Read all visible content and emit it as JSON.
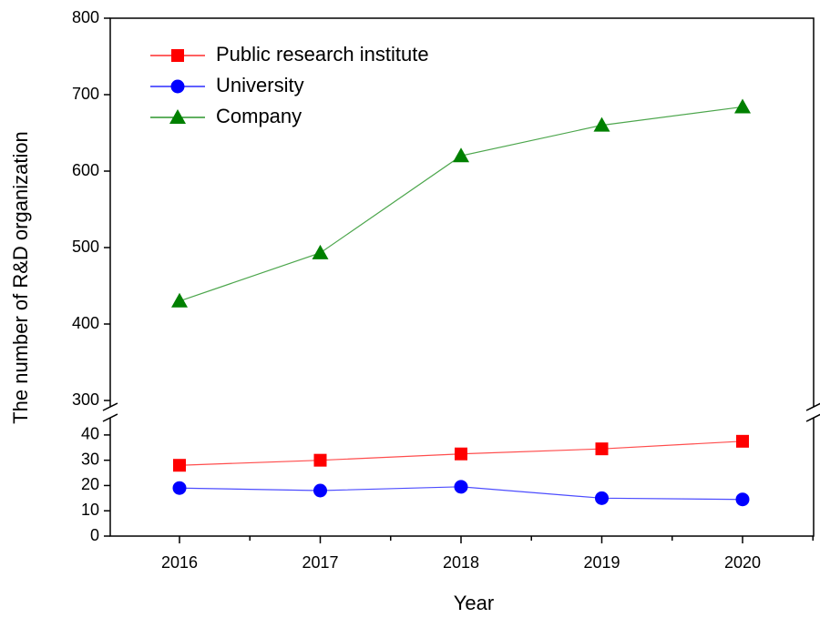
{
  "chart_data": {
    "type": "line",
    "x_label": "Year",
    "y_label": "The number of R&D organization",
    "categories": [
      "2016",
      "2017",
      "2018",
      "2019",
      "2020"
    ],
    "series": [
      {
        "name": "Public research institute",
        "color": "#ff0000",
        "marker": "square",
        "values": [
          28,
          30,
          32.5,
          34.5,
          37.5
        ]
      },
      {
        "name": "University",
        "color": "#0000ff",
        "marker": "circle",
        "values": [
          19,
          18,
          19.5,
          15,
          14.5
        ]
      },
      {
        "name": "Company",
        "color": "#008000",
        "marker": "triangle",
        "values": [
          430,
          493,
          620,
          660,
          684
        ]
      }
    ],
    "ylim": [
      0,
      800
    ],
    "axis_break": [
      45,
      300
    ],
    "yticks": [
      0,
      10,
      20,
      30,
      40,
      300,
      400,
      500,
      600,
      700,
      800
    ],
    "legend": "upper left"
  }
}
